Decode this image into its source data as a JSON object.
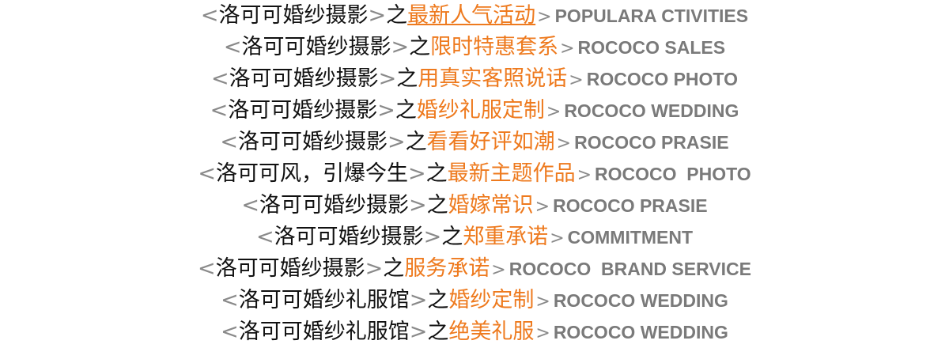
{
  "colors": {
    "accent": "#ee7a1e",
    "text_dark": "#111111",
    "text_gray": "#7a7a7a"
  },
  "items": [
    {
      "brand": "洛可可婚纱摄影",
      "title": "最新人气活动",
      "en": "POPULARA CTIVITIES"
    },
    {
      "brand": "洛可可婚纱摄影",
      "title": "限时特惠套系",
      "en": "ROCOCO SALES"
    },
    {
      "brand": "洛可可婚纱摄影",
      "title": "用真实客照说话",
      "en": "ROCOCO PHOTO"
    },
    {
      "brand": "洛可可婚纱摄影",
      "title": "婚纱礼服定制",
      "en": "ROCOCO WEDDING"
    },
    {
      "brand": "洛可可婚纱摄影",
      "title": "看看好评如潮",
      "en": "ROCOCO PRASIE"
    },
    {
      "brand": "洛可可风，引爆今生",
      "title": "最新主题作品",
      "en": "ROCOCO  PHOTO"
    },
    {
      "brand": "洛可可婚纱摄影",
      "title": "婚嫁常识",
      "en": "ROCOCO PRASIE"
    },
    {
      "brand": "洛可可婚纱摄影",
      "title": "郑重承诺",
      "en": "COMMITMENT"
    },
    {
      "brand": "洛可可婚纱摄影",
      "title": "服务承诺",
      "en": "ROCOCO  BRAND SERVICE"
    },
    {
      "brand": "洛可可婚纱礼服馆",
      "title": "婚纱定制",
      "en": "ROCOCO WEDDING"
    },
    {
      "brand": "洛可可婚纱礼服馆",
      "title": "绝美礼服",
      "en": "ROCOCO WEDDING"
    }
  ],
  "symbols": {
    "open": "<",
    "close": ">",
    "zhi": "之",
    "arrow": ">"
  }
}
